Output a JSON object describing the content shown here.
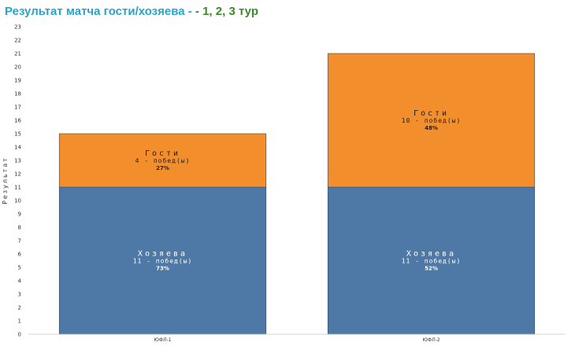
{
  "title": {
    "main": "Результат матча гости/хозяева - ",
    "suffix": " - 1, 2, 3 тур"
  },
  "chart_data": {
    "type": "bar",
    "stacked": true,
    "categories": [
      "ЮФЛ-1",
      "ЮФЛ-2"
    ],
    "ylabel": "Результат",
    "xlabel": "",
    "ylim": [
      0,
      23
    ],
    "yticks": [
      0,
      1,
      2,
      3,
      4,
      5,
      6,
      7,
      8,
      9,
      10,
      11,
      12,
      13,
      14,
      15,
      16,
      17,
      18,
      19,
      20,
      21,
      22,
      23
    ],
    "grid": false,
    "series": [
      {
        "name": "Хозяева",
        "color": "#4e79a7",
        "text_color": "#ffffff",
        "values": [
          11,
          11
        ],
        "wins_labels": [
          "11 - побед(ы)",
          "11 - побед(ы)"
        ],
        "pct_labels": [
          "73%",
          "52%"
        ]
      },
      {
        "name": "Гости",
        "color": "#f28e2b",
        "text_color": "#222222",
        "values": [
          4,
          10
        ],
        "wins_labels": [
          "4 - побед(ы)",
          "10 - побед(ы)"
        ],
        "pct_labels": [
          "27%",
          "48%"
        ]
      }
    ]
  }
}
